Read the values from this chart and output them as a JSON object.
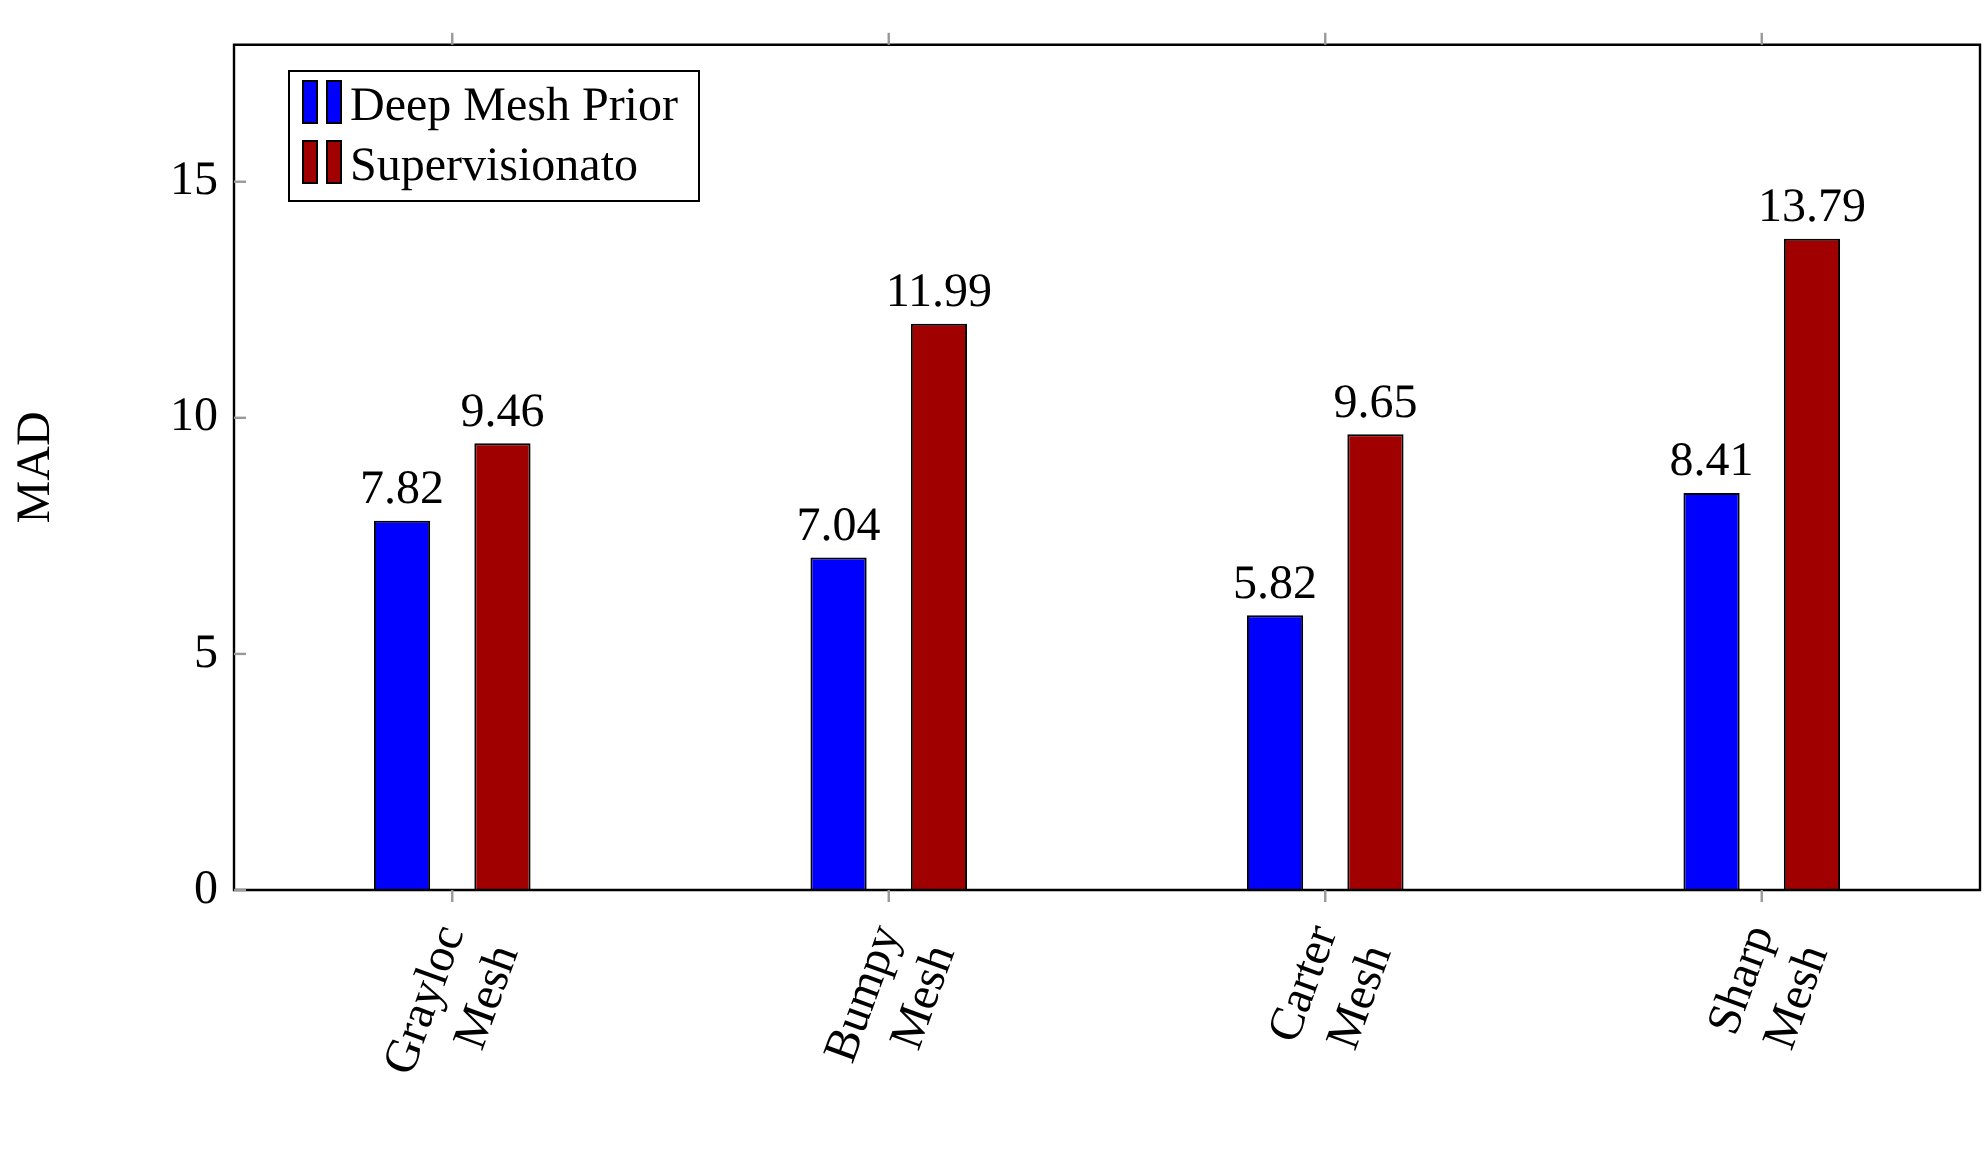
{
  "chart_data": {
    "type": "bar",
    "ylabel": "MAD",
    "categories": [
      "Grayloc Mesh",
      "Bumpy Mesh",
      "Carter Mesh",
      "Sharp Mesh"
    ],
    "series": [
      {
        "name": "Deep Mesh Prior",
        "color": "#0000ff",
        "values": [
          7.82,
          7.04,
          5.82,
          8.41
        ]
      },
      {
        "name": "Supervisionato",
        "color": "#a00000",
        "values": [
          9.46,
          11.99,
          9.65,
          13.79
        ]
      }
    ],
    "ylim": [
      0,
      17.9
    ],
    "yticks": [
      0,
      5,
      10,
      15
    ],
    "grid": false,
    "legend": "top left",
    "data_labels": true
  }
}
